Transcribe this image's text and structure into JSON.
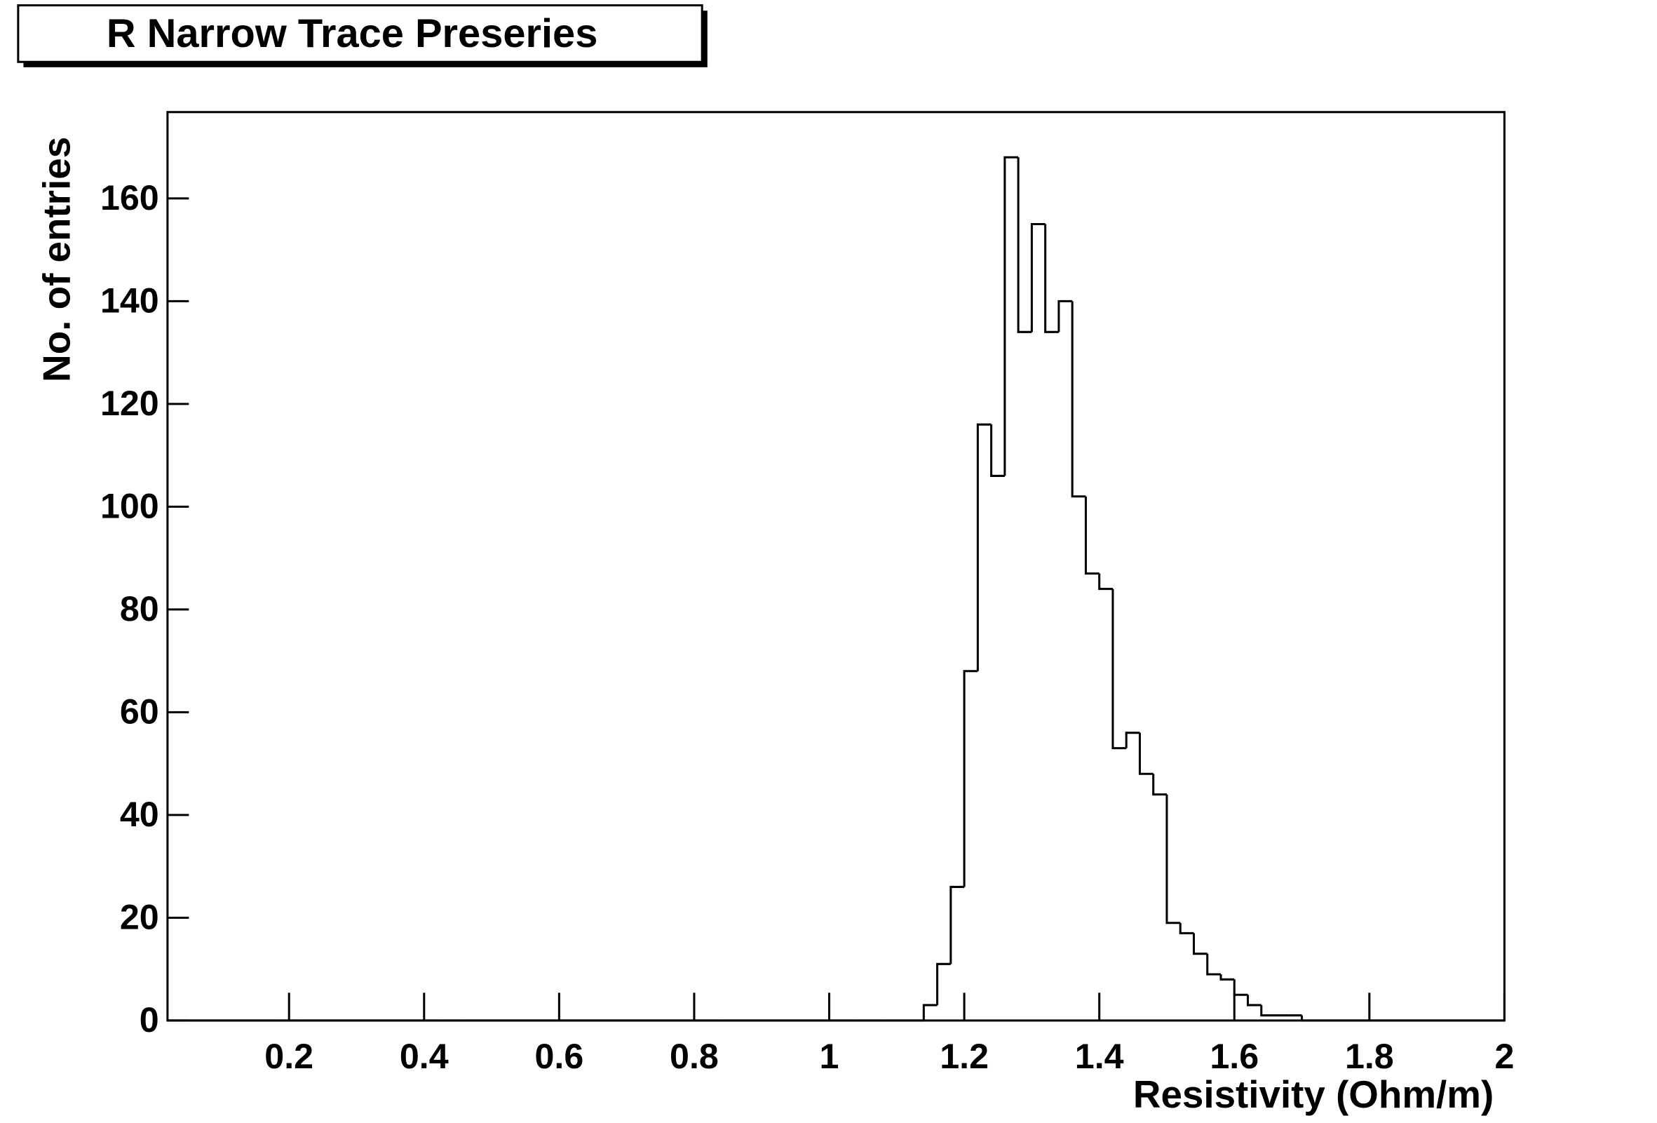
{
  "chart_data": {
    "type": "histogram",
    "title": "R Narrow Trace Preseries",
    "x_label": "Resistivity (Ohm/m)",
    "y_label": "No. of entries",
    "bins": [
      0.02,
      0.04,
      0.06,
      0.08,
      0.1,
      0.12,
      0.14,
      0.16,
      0.18,
      0.2,
      0.22,
      0.24,
      0.26,
      0.28,
      0.3,
      0.32,
      0.34,
      0.36,
      0.38,
      0.4,
      0.42,
      0.44,
      0.46,
      0.48,
      0.5,
      0.52,
      0.54,
      0.56,
      0.58,
      0.6,
      0.62,
      0.64,
      0.66,
      0.68,
      0.7,
      0.72,
      0.74,
      0.76,
      0.78,
      0.8,
      0.82,
      0.84,
      0.86,
      0.88,
      0.9,
      0.92,
      0.94,
      0.96,
      0.98,
      1,
      1.02,
      1.04,
      1.06,
      1.08,
      1.1,
      1.12,
      1.14,
      1.16,
      1.18,
      1.2,
      1.22,
      1.24,
      1.26,
      1.28,
      1.3,
      1.32,
      1.34,
      1.36,
      1.38,
      1.4,
      1.42,
      1.44,
      1.46,
      1.48,
      1.5,
      1.52,
      1.54,
      1.56,
      1.58,
      1.6,
      1.62,
      1.64,
      1.66,
      1.68,
      1.7,
      1.72,
      1.74,
      1.76,
      1.78,
      1.8,
      1.82,
      1.84,
      1.86,
      1.88,
      1.9,
      1.92,
      1.94,
      1.96,
      1.98,
      2
    ],
    "values": [
      0,
      0,
      0,
      0,
      0,
      0,
      0,
      0,
      0,
      0,
      0,
      0,
      0,
      0,
      0,
      0,
      0,
      0,
      0,
      0,
      0,
      0,
      0,
      0,
      0,
      0,
      0,
      0,
      0,
      0,
      0,
      0,
      0,
      0,
      0,
      0,
      0,
      0,
      0,
      0,
      0,
      0,
      0,
      0,
      0,
      0,
      0,
      0,
      0,
      0,
      0,
      0,
      0,
      0,
      0,
      0,
      3,
      11,
      26,
      68,
      116,
      106,
      168,
      134,
      155,
      134,
      140,
      102,
      87,
      84,
      53,
      56,
      48,
      44,
      19,
      17,
      13,
      9,
      8,
      5,
      3,
      1,
      1,
      1,
      0,
      0,
      0,
      0,
      0,
      0,
      0,
      0,
      0,
      0,
      0,
      0,
      0,
      0,
      0
    ],
    "color": "#000000",
    "xlim": [
      0.02,
      2
    ],
    "ylim": [
      0,
      176.8
    ],
    "xticks": [
      0.2,
      0.4,
      0.6,
      0.8,
      1,
      1.2,
      1.4,
      1.6,
      1.8,
      2
    ],
    "yticks": [
      0,
      20,
      40,
      60,
      80,
      100,
      120,
      140,
      160
    ]
  }
}
